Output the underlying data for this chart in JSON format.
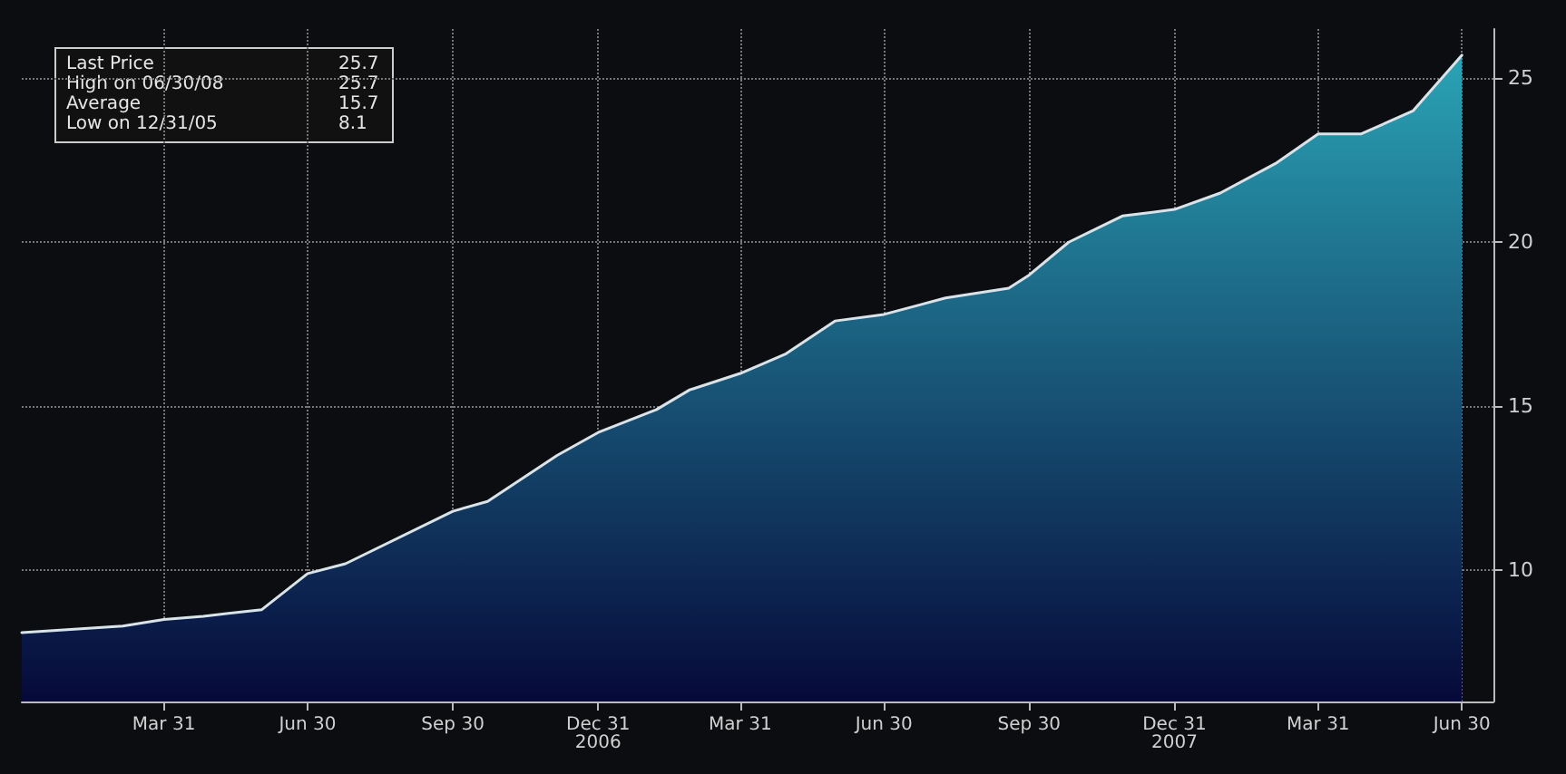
{
  "chart_data": {
    "type": "area",
    "x": [
      "2005-12-31",
      "2006-03-05",
      "2006-03-31",
      "2006-04-25",
      "2006-06-01",
      "2006-06-30",
      "2006-07-24",
      "2006-09-30",
      "2006-10-22",
      "2006-12-05",
      "2006-12-31",
      "2007-02-06",
      "2007-02-27",
      "2007-03-31",
      "2007-04-29",
      "2007-05-30",
      "2007-06-30",
      "2007-08-08",
      "2007-09-17",
      "2007-09-30",
      "2007-10-25",
      "2007-11-28",
      "2007-12-31",
      "2008-01-29",
      "2008-03-04",
      "2008-03-31",
      "2008-04-27",
      "2008-05-30",
      "2008-06-30"
    ],
    "series": [
      {
        "color": "#2aa3b5",
        "values": [
          8.1,
          8.3,
          8.5,
          8.6,
          8.8,
          9.9,
          10.2,
          11.8,
          12.1,
          13.5,
          14.2,
          14.9,
          15.5,
          16.0,
          16.6,
          17.6,
          17.8,
          18.3,
          18.6,
          19.0,
          20.0,
          20.8,
          21.0,
          21.5,
          22.4,
          23.3,
          23.3,
          24.0,
          25.7
        ]
      }
    ],
    "xlim": [
      "2005-12-31",
      "2008-07-20"
    ],
    "xticks": [
      {
        "value": "2006-03-31",
        "label": "Mar 31"
      },
      {
        "value": "2006-06-30",
        "label": "Jun 30"
      },
      {
        "value": "2006-09-30",
        "label": "Sep 30"
      },
      {
        "value": "2006-12-31",
        "label": "Dec 31\n2006"
      },
      {
        "value": "2007-03-31",
        "label": "Mar 31"
      },
      {
        "value": "2007-06-30",
        "label": "Jun 30"
      },
      {
        "value": "2007-09-30",
        "label": "Sep 30"
      },
      {
        "value": "2007-12-31",
        "label": "Dec 31\n2007"
      },
      {
        "value": "2008-03-31",
        "label": "Mar 31"
      },
      {
        "value": "2008-06-30",
        "label": "Jun 30"
      }
    ],
    "ylim": [
      6,
      26.5
    ],
    "yticks": [
      10,
      15,
      20,
      25
    ],
    "grid": true,
    "marker": "none",
    "line_style": "solid",
    "annotations": [
      "Last Price 25.7",
      "High on 06/30/08 25.7",
      "Average 15.7",
      "Low on 12/31/05 8.1"
    ]
  }
}
